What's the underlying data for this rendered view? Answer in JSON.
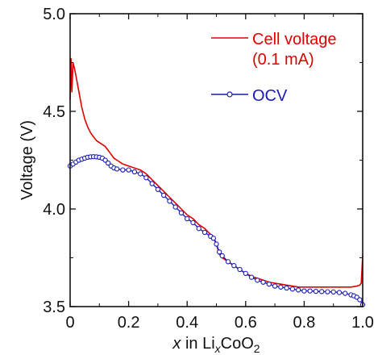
{
  "chart_data": {
    "type": "line",
    "title": "",
    "xlabel": {
      "italic": "x",
      "text": " in Li",
      "sub1": "x",
      "mid": "CoO",
      "sub2": "2"
    },
    "ylabel": "Voltage (V)",
    "xlim": [
      0,
      1.0
    ],
    "ylim": [
      3.5,
      5.0
    ],
    "x_ticks": [
      0,
      0.2,
      0.4,
      0.6,
      0.8,
      1.0
    ],
    "x_tick_labels": [
      "0",
      "0.2",
      "0.4",
      "0.6",
      "0.8",
      "1.0"
    ],
    "y_ticks": [
      3.5,
      4.0,
      4.5,
      5.0
    ],
    "y_tick_labels": [
      "3.5",
      "4.0",
      "4.5",
      "5.0"
    ],
    "grid": false,
    "legend_position": "top-right",
    "series": [
      {
        "key": "cell",
        "name_line1": "Cell voltage",
        "name_line2": "(0.1 mA)",
        "color": "#e00000",
        "style": "line",
        "x": [
          0.0,
          0.003,
          0.006,
          0.01,
          0.015,
          0.02,
          0.03,
          0.04,
          0.05,
          0.06,
          0.07,
          0.08,
          0.09,
          0.1,
          0.11,
          0.12,
          0.13,
          0.14,
          0.15,
          0.16,
          0.18,
          0.2,
          0.22,
          0.24,
          0.26,
          0.28,
          0.3,
          0.32,
          0.34,
          0.36,
          0.38,
          0.4,
          0.42,
          0.44,
          0.46,
          0.48,
          0.49,
          0.5,
          0.51,
          0.52,
          0.54,
          0.56,
          0.58,
          0.6,
          0.62,
          0.64,
          0.66,
          0.68,
          0.7,
          0.72,
          0.74,
          0.76,
          0.78,
          0.8,
          0.82,
          0.84,
          0.86,
          0.88,
          0.9,
          0.92,
          0.94,
          0.96,
          0.98,
          0.99,
          0.995,
          1.0
        ],
        "y": [
          4.56,
          4.77,
          4.6,
          4.75,
          4.72,
          4.68,
          4.6,
          4.52,
          4.46,
          4.42,
          4.39,
          4.37,
          4.35,
          4.34,
          4.33,
          4.32,
          4.3,
          4.28,
          4.26,
          4.25,
          4.23,
          4.22,
          4.21,
          4.2,
          4.18,
          4.15,
          4.12,
          4.09,
          4.06,
          4.03,
          4.0,
          3.97,
          3.95,
          3.92,
          3.9,
          3.87,
          3.86,
          3.82,
          3.77,
          3.75,
          3.73,
          3.71,
          3.69,
          3.67,
          3.655,
          3.645,
          3.635,
          3.625,
          3.62,
          3.615,
          3.61,
          3.605,
          3.6,
          3.6,
          3.6,
          3.6,
          3.6,
          3.6,
          3.6,
          3.6,
          3.6,
          3.6,
          3.605,
          3.61,
          3.62,
          3.76
        ]
      },
      {
        "key": "ocv",
        "name": "OCV",
        "color": "#1a1ab4",
        "style": "line+circle",
        "x": [
          0.0,
          0.01,
          0.02,
          0.03,
          0.04,
          0.05,
          0.06,
          0.07,
          0.08,
          0.09,
          0.1,
          0.11,
          0.12,
          0.13,
          0.14,
          0.15,
          0.16,
          0.18,
          0.2,
          0.22,
          0.24,
          0.26,
          0.28,
          0.3,
          0.32,
          0.34,
          0.36,
          0.38,
          0.4,
          0.42,
          0.44,
          0.46,
          0.48,
          0.49,
          0.5,
          0.51,
          0.52,
          0.54,
          0.56,
          0.58,
          0.6,
          0.62,
          0.64,
          0.66,
          0.68,
          0.7,
          0.72,
          0.74,
          0.76,
          0.78,
          0.8,
          0.82,
          0.84,
          0.86,
          0.88,
          0.9,
          0.92,
          0.94,
          0.96,
          0.97,
          0.98,
          0.99,
          1.0
        ],
        "y": [
          4.22,
          4.23,
          4.24,
          4.25,
          4.255,
          4.26,
          4.265,
          4.267,
          4.268,
          4.267,
          4.265,
          4.26,
          4.25,
          4.235,
          4.22,
          4.21,
          4.205,
          4.2,
          4.2,
          4.19,
          4.18,
          4.16,
          4.13,
          4.1,
          4.07,
          4.04,
          4.01,
          3.98,
          3.95,
          3.93,
          3.9,
          3.88,
          3.86,
          3.85,
          3.82,
          3.78,
          3.76,
          3.73,
          3.71,
          3.69,
          3.67,
          3.65,
          3.635,
          3.625,
          3.615,
          3.605,
          3.6,
          3.595,
          3.59,
          3.585,
          3.58,
          3.58,
          3.578,
          3.577,
          3.576,
          3.575,
          3.572,
          3.568,
          3.56,
          3.555,
          3.548,
          3.535,
          3.51
        ]
      }
    ]
  }
}
